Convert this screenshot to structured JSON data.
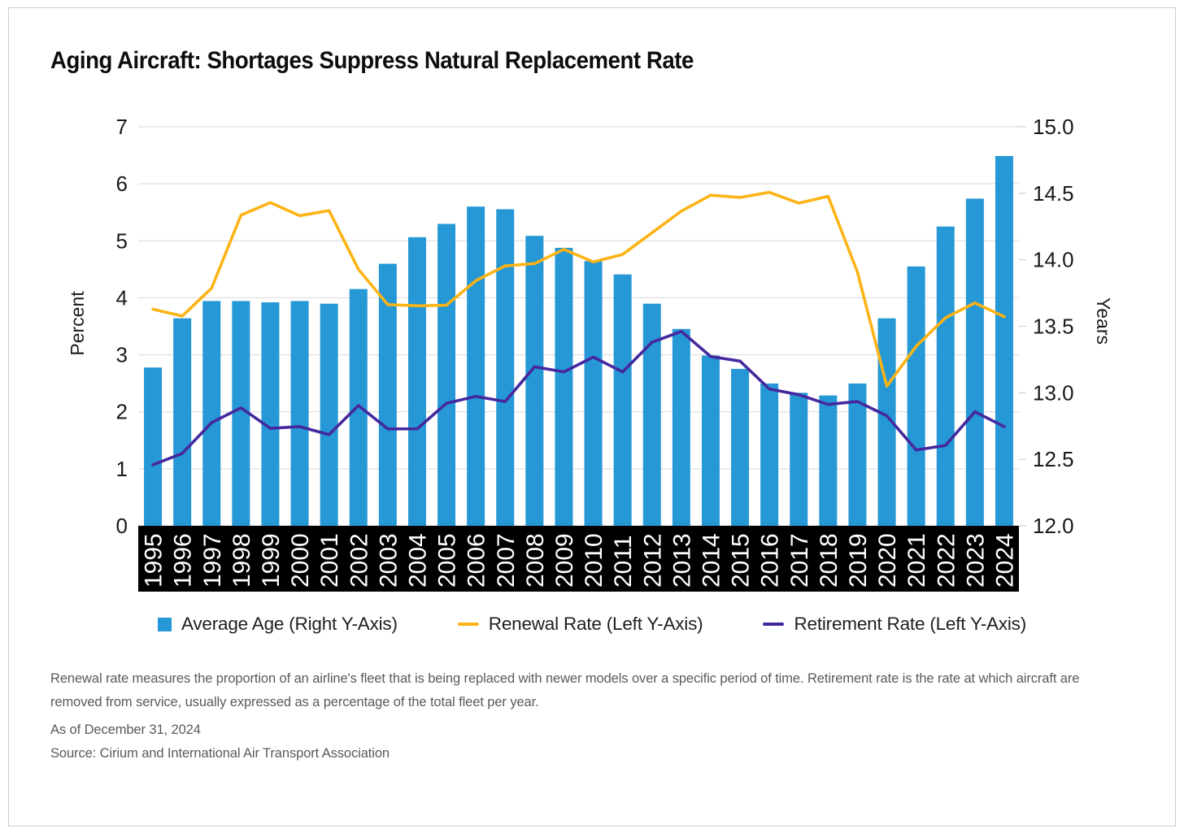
{
  "card": {
    "title": "Aging Aircraft: Shortages Suppress Natural Replacement Rate"
  },
  "chart_data": {
    "type": "bar",
    "subtype": "combo-bar-line",
    "title": "Aging Aircraft: Shortages Suppress Natural Replacement Rate",
    "grid": true,
    "legend_position": "bottom",
    "categories": [
      "1995",
      "1996",
      "1997",
      "1998",
      "1999",
      "2000",
      "2001",
      "2002",
      "2003",
      "2004",
      "2005",
      "2006",
      "2007",
      "2008",
      "2009",
      "2010",
      "2011",
      "2012",
      "2013",
      "2014",
      "2015",
      "2016",
      "2017",
      "2018",
      "2019",
      "2020",
      "2021",
      "2022",
      "2023",
      "2024"
    ],
    "left_axis": {
      "label": "Percent",
      "min": 0,
      "max": 7,
      "ticks": [
        0,
        1,
        2,
        3,
        4,
        5,
        6,
        7
      ]
    },
    "right_axis": {
      "label": "Years",
      "min": 12.0,
      "max": 15.0,
      "ticks": [
        12.0,
        12.5,
        13.0,
        13.5,
        14.0,
        14.5,
        15.0
      ]
    },
    "series": [
      {
        "name": "Average Age (Right Y-Axis)",
        "type": "bar",
        "axis": "right",
        "color": "#2598d5",
        "values": [
          13.19,
          13.56,
          13.69,
          13.69,
          13.68,
          13.69,
          13.67,
          13.78,
          13.97,
          14.17,
          14.27,
          14.4,
          14.38,
          14.18,
          14.09,
          13.99,
          13.89,
          13.67,
          13.48,
          13.28,
          13.18,
          13.07,
          13.0,
          12.98,
          13.07,
          13.56,
          13.95,
          14.25,
          14.46,
          14.78
        ]
      },
      {
        "name": "Renewal Rate (Left Y-Axis)",
        "type": "line",
        "axis": "left",
        "color": "#fcb316",
        "values": [
          3.8,
          3.68,
          4.17,
          5.45,
          5.67,
          5.44,
          5.53,
          4.5,
          3.88,
          3.86,
          3.87,
          4.3,
          4.56,
          4.6,
          4.85,
          4.63,
          4.76,
          5.14,
          5.52,
          5.8,
          5.76,
          5.85,
          5.66,
          5.78,
          4.45,
          2.45,
          3.15,
          3.65,
          3.91,
          3.67
        ]
      },
      {
        "name": "Retirement Rate (Left Y-Axis)",
        "type": "line",
        "axis": "left",
        "color": "#46289e",
        "values": [
          1.07,
          1.27,
          1.81,
          2.07,
          1.71,
          1.74,
          1.6,
          2.11,
          1.7,
          1.7,
          2.15,
          2.27,
          2.18,
          2.79,
          2.7,
          2.96,
          2.7,
          3.22,
          3.41,
          2.97,
          2.89,
          2.4,
          2.3,
          2.13,
          2.18,
          1.93,
          1.33,
          1.41,
          2.0,
          1.74
        ]
      }
    ],
    "colors": {
      "bar_blue": "#2598d5",
      "renewal_yellow": "#fcb316",
      "retirement_purple": "#46289e",
      "gridline": "#d9d9d9",
      "x_band_background": "#000000",
      "x_label_text": "#ffffff"
    }
  },
  "footnotes": {
    "description": "Renewal rate measures the proportion of an airline's fleet that is being replaced with newer models over a specific period of time. Retirement rate is the rate at which aircraft are removed from service, usually expressed as a percentage of the total fleet per year.",
    "as_of": "As of December 31, 2024",
    "source": "Source: Cirium and International Air Transport Association"
  }
}
